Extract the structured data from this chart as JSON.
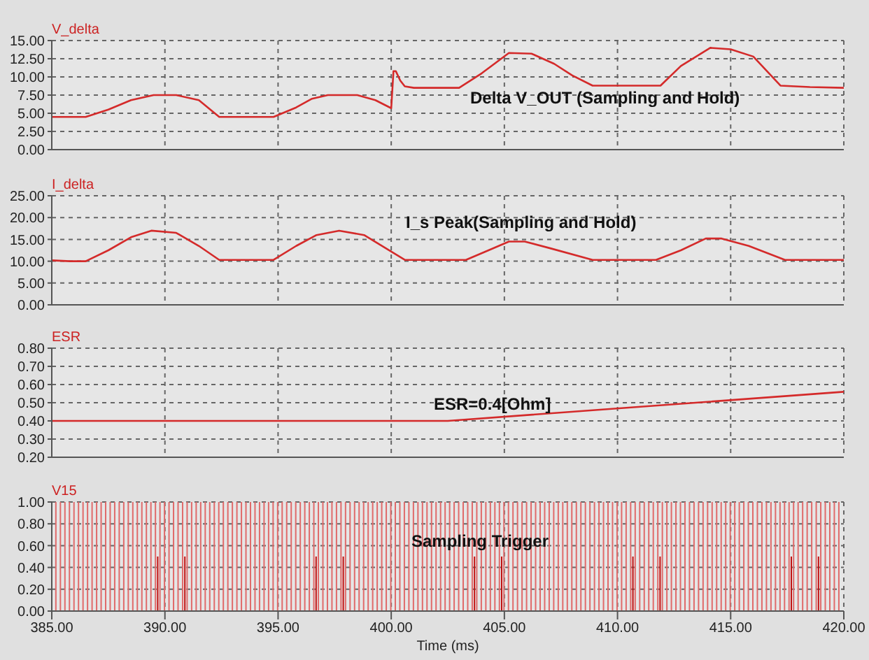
{
  "chart_data": [
    {
      "type": "line",
      "title": "V_delta",
      "xlim": [
        385,
        420
      ],
      "xticks": [
        385,
        390,
        395,
        400,
        405,
        410,
        415,
        420
      ],
      "ylim": [
        0,
        15
      ],
      "yticks": [
        {
          "value": 0,
          "label": "0.00"
        },
        {
          "value": 2.5,
          "label": "2.50"
        },
        {
          "value": 5,
          "label": "5.00"
        },
        {
          "value": 7.5,
          "label": "7.50"
        },
        {
          "value": 10,
          "label": "10.00"
        },
        {
          "value": 12.5,
          "label": "12.50"
        },
        {
          "value": 15,
          "label": "15.00"
        }
      ],
      "tick_labels": "y",
      "grid": true,
      "annotations": [
        "Delta V_OUT (Sampling and Hold)"
      ],
      "series": [
        {
          "color": "#d42a2a",
          "x": [
            385,
            386.5,
            387.5,
            388.5,
            389.5,
            390.5,
            391.5,
            392.4,
            394.8,
            395.8,
            396.5,
            397.2,
            398.5,
            399.3,
            400,
            400.1,
            400.2,
            400.4,
            400.6,
            401,
            403,
            404,
            405.2,
            406.2,
            407.2,
            408,
            408.9,
            411.9,
            412.8,
            414.1,
            415,
            416,
            417.2,
            418.5,
            420
          ],
          "values": [
            4.5,
            4.5,
            5.5,
            6.8,
            7.5,
            7.5,
            6.8,
            4.5,
            4.5,
            5.8,
            7,
            7.5,
            7.5,
            6.8,
            5.7,
            10.8,
            10.8,
            9.5,
            8.7,
            8.5,
            8.5,
            10.5,
            13.3,
            13.2,
            11.8,
            10.2,
            8.8,
            8.8,
            11.5,
            14,
            13.8,
            12.8,
            8.8,
            8.6,
            8.5
          ]
        }
      ]
    },
    {
      "type": "line",
      "title": "I_delta",
      "xlim": [
        385,
        420
      ],
      "xticks": [
        385,
        390,
        395,
        400,
        405,
        410,
        415,
        420
      ],
      "ylim": [
        0,
        25
      ],
      "yticks": [
        {
          "value": 0,
          "label": "0.00"
        },
        {
          "value": 5,
          "label": "5.00"
        },
        {
          "value": 10,
          "label": "10.00"
        },
        {
          "value": 15,
          "label": "15.00"
        },
        {
          "value": 20,
          "label": "20.00"
        },
        {
          "value": 25,
          "label": "25.00"
        }
      ],
      "tick_labels": "y",
      "grid": true,
      "annotations": [
        "I_s Peak(Sampling and Hold)"
      ],
      "series": [
        {
          "color": "#d42a2a",
          "x": [
            385,
            385.8,
            386.5,
            387.5,
            388.5,
            389.4,
            390.5,
            391.5,
            392.4,
            394.8,
            395.8,
            396.7,
            397.7,
            398.8,
            400.6,
            403.3,
            404.3,
            405.2,
            405.9,
            407,
            408.9,
            411.7,
            412.8,
            413.9,
            414.6,
            415.8,
            417.4,
            420
          ],
          "values": [
            10.2,
            10,
            10,
            12.5,
            15.5,
            17,
            16.5,
            13.5,
            10.3,
            10.3,
            13.5,
            16,
            17,
            16,
            10.3,
            10.3,
            12.5,
            14.5,
            14.5,
            13,
            10.3,
            10.3,
            12.5,
            15.2,
            15.2,
            13.5,
            10.3,
            10.3
          ]
        }
      ]
    },
    {
      "type": "line",
      "title": "ESR",
      "xlim": [
        385,
        420
      ],
      "xticks": [
        385,
        390,
        395,
        400,
        405,
        410,
        415,
        420
      ],
      "ylim": [
        0.2,
        0.8
      ],
      "yticks": [
        {
          "value": 0.2,
          "label": "0.20"
        },
        {
          "value": 0.3,
          "label": "0.30"
        },
        {
          "value": 0.4,
          "label": "0.40"
        },
        {
          "value": 0.5,
          "label": "0.50"
        },
        {
          "value": 0.6,
          "label": "0.60"
        },
        {
          "value": 0.7,
          "label": "0.70"
        },
        {
          "value": 0.8,
          "label": "0.80"
        }
      ],
      "tick_labels": "y",
      "grid": true,
      "annotations": [
        "ESR=0.4[Ohm]"
      ],
      "series": [
        {
          "color": "#d42a2a",
          "x": [
            385,
            402.5,
            420
          ],
          "values": [
            0.4,
            0.4,
            0.56
          ]
        }
      ]
    },
    {
      "type": "bar",
      "title": "V15",
      "xlabel": "Time (ms)",
      "xlim": [
        385,
        420
      ],
      "xticks": [
        {
          "value": 385,
          "label": "385.00"
        },
        {
          "value": 390,
          "label": "390.00"
        },
        {
          "value": 395,
          "label": "395.00"
        },
        {
          "value": 400,
          "label": "400.00"
        },
        {
          "value": 405,
          "label": "405.00"
        },
        {
          "value": 410,
          "label": "410.00"
        },
        {
          "value": 415,
          "label": "415.00"
        },
        {
          "value": 420,
          "label": "420.00"
        }
      ],
      "ylim": [
        0,
        1
      ],
      "yticks": [
        {
          "value": 0,
          "label": "0.00"
        },
        {
          "value": 0.2,
          "label": "0.20"
        },
        {
          "value": 0.4,
          "label": "0.40"
        },
        {
          "value": 0.6,
          "label": "0.60"
        },
        {
          "value": 0.8,
          "label": "0.80"
        },
        {
          "value": 1,
          "label": "1.00"
        }
      ],
      "grid": true,
      "annotations": [
        "Sampling Trigger"
      ],
      "series": [
        {
          "color": "#e06a6a",
          "x": [
            385.2,
            385.4,
            385.6,
            385.8,
            386,
            386.2,
            386.4,
            386.6,
            386.8,
            387,
            387.2,
            387.4,
            387.6,
            387.8,
            388,
            388.2,
            388.4,
            388.6,
            388.8,
            389,
            389.2,
            389.4,
            389.6,
            389.8,
            390,
            390.2,
            390.4,
            390.6,
            390.8,
            391,
            391.2,
            391.4,
            391.6,
            391.8,
            392,
            392.2,
            392.4,
            392.6,
            392.8,
            393,
            393.2,
            393.4,
            393.6,
            393.8,
            394,
            394.2,
            394.4,
            394.6,
            394.8,
            395,
            395.2,
            395.4,
            395.6,
            395.8,
            396,
            396.2,
            396.4,
            396.6,
            396.8,
            397,
            397.2,
            397.4,
            397.6,
            397.8,
            398,
            398.2,
            398.4,
            398.6,
            398.8,
            399,
            399.2,
            399.4,
            399.6,
            399.8,
            400,
            400.2,
            400.4,
            400.6,
            400.8,
            401,
            401.2,
            401.4,
            401.6,
            401.8,
            402,
            402.2,
            402.4,
            402.6,
            402.8,
            403,
            403.2,
            403.4,
            403.6,
            403.8,
            404,
            404.2,
            404.4,
            404.6,
            404.8,
            405,
            405.2,
            405.4,
            405.6,
            405.8,
            406,
            406.2,
            406.4,
            406.6,
            406.8,
            407,
            407.2,
            407.4,
            407.6,
            407.8,
            408,
            408.2,
            408.4,
            408.6,
            408.8,
            409,
            409.2,
            409.4,
            409.6,
            409.8,
            410,
            410.2,
            410.4,
            410.6,
            410.8,
            411,
            411.2,
            411.4,
            411.6,
            411.8,
            412,
            412.2,
            412.4,
            412.6,
            412.8,
            413,
            413.2,
            413.4,
            413.6,
            413.8,
            414,
            414.2,
            414.4,
            414.6,
            414.8,
            415,
            415.2,
            415.4,
            415.6,
            415.8,
            416,
            416.2,
            416.4,
            416.6,
            416.8,
            417,
            417.2,
            417.4,
            417.6,
            417.8,
            418,
            418.2,
            418.4,
            418.6,
            418.8,
            419,
            419.2,
            419.4,
            419.6,
            419.8
          ],
          "values": [
            1,
            1,
            1,
            1,
            1,
            1,
            1,
            1,
            1,
            1,
            1,
            1,
            1,
            1,
            1,
            1,
            1,
            1,
            1,
            1,
            1,
            1,
            1,
            1,
            1,
            1,
            1,
            1,
            1,
            1,
            1,
            1,
            1,
            1,
            1,
            1,
            1,
            1,
            1,
            1,
            1,
            1,
            1,
            1,
            1,
            1,
            1,
            1,
            1,
            1,
            1,
            1,
            1,
            1,
            1,
            1,
            1,
            1,
            1,
            1,
            1,
            1,
            1,
            1,
            1,
            1,
            1,
            1,
            1,
            1,
            1,
            1,
            1,
            1,
            1,
            1,
            1,
            1,
            1,
            1,
            1,
            1,
            1,
            1,
            1,
            1,
            1,
            1,
            1,
            1,
            1,
            1,
            1,
            1,
            1,
            1,
            1,
            1,
            1,
            1,
            1,
            1,
            1,
            1,
            1,
            1,
            1,
            1,
            1,
            1,
            1,
            1,
            1,
            1,
            1,
            1,
            1,
            1,
            1,
            1,
            1,
            1,
            1,
            1,
            1,
            1,
            1,
            1,
            1,
            1,
            1,
            1,
            1,
            1,
            1,
            1,
            1,
            1,
            1,
            1,
            1,
            1,
            1,
            1,
            1,
            1,
            1,
            1,
            1,
            1,
            1,
            1,
            1,
            1,
            1,
            1,
            1,
            1,
            1,
            1,
            1,
            1,
            1,
            1,
            1,
            1,
            1,
            1,
            1,
            1,
            1,
            1,
            1,
            1
          ]
        },
        {
          "color": "#c01010",
          "x": [
            389.7,
            390.9,
            396.7,
            397.9,
            403.7,
            404.9,
            410.7,
            411.9,
            417.7,
            418.9
          ],
          "values": [
            0.5,
            0.5,
            0.5,
            0.5,
            0.5,
            0.5,
            0.5,
            0.5,
            0.5,
            0.5
          ]
        }
      ]
    }
  ]
}
